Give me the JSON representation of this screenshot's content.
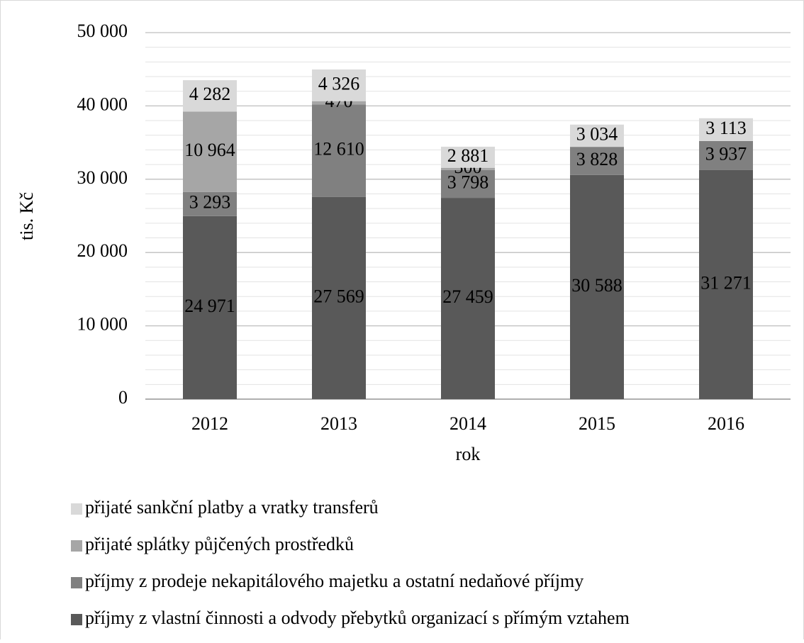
{
  "chart_data": {
    "type": "stacked_bar",
    "categories": [
      "2012",
      "2013",
      "2014",
      "2015",
      "2016"
    ],
    "series": [
      {
        "name": "příjmy z vlastní činnosti a odvody přebytků organizací s přímým vztahem",
        "color": "#595959",
        "values": [
          24971,
          27569,
          27459,
          30588,
          31271
        ],
        "value_labels": [
          "24 971",
          "27 569",
          "27 459",
          "30 588",
          "31 271"
        ]
      },
      {
        "name": "příjmy z prodeje nekapitálového majetku a ostatní nedaňové příjmy",
        "color": "#808080",
        "values": [
          3293,
          12610,
          3798,
          3828,
          3937
        ],
        "value_labels": [
          "3 293",
          "12 610",
          "3 798",
          "3 828",
          "3 937"
        ]
      },
      {
        "name": "přijaté splátky půjčených prostředků",
        "color": "#a6a6a6",
        "values": [
          10964,
          470,
          300,
          null,
          null
        ],
        "value_labels": [
          "10 964",
          "470",
          "300",
          null,
          null
        ]
      },
      {
        "name": "přijaté sankční platby a vratky transferů",
        "color": "#d9d9d9",
        "values": [
          4282,
          4326,
          2881,
          3034,
          3113
        ],
        "value_labels": [
          "4 282",
          "4 326",
          "2 881",
          "3 034",
          "3 113"
        ]
      }
    ],
    "xlabel": "rok",
    "ylabel": "tis. Kč",
    "ylim": [
      0,
      50000
    ],
    "yticks": [
      0,
      {
        "value": 10000,
        "label": "10 000"
      },
      {
        "value": 20000,
        "label": "20 000"
      },
      {
        "value": 30000,
        "label": "30 000"
      },
      {
        "value": 40000,
        "label": "40 000"
      },
      {
        "value": 50000,
        "label": "50 000"
      }
    ],
    "yminor": [
      2000,
      4000,
      6000,
      8000,
      12000,
      14000,
      16000,
      18000,
      22000,
      24000,
      26000,
      28000,
      32000,
      34000,
      36000,
      38000,
      42000,
      44000,
      46000,
      48000
    ],
    "grid": true,
    "legend": "bottom"
  }
}
